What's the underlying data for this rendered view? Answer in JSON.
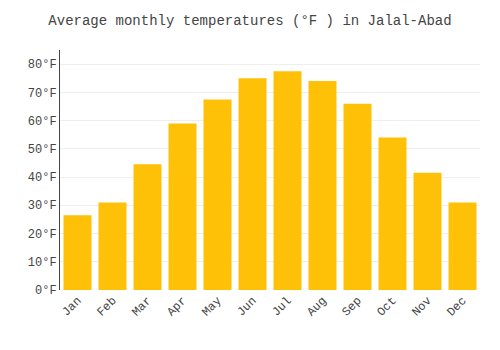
{
  "chart_data": {
    "type": "bar",
    "title": "Average monthly temperatures (°F ) in Jalal-Abad",
    "categories": [
      "Jan",
      "Feb",
      "Mar",
      "Apr",
      "May",
      "Jun",
      "Jul",
      "Aug",
      "Sep",
      "Oct",
      "Nov",
      "Dec"
    ],
    "values": [
      26.5,
      31.0,
      44.5,
      59.0,
      67.5,
      75.0,
      77.5,
      74.0,
      66.0,
      54.0,
      41.5,
      31.0
    ],
    "color": "#FFC107",
    "ylim": [
      0,
      85
    ],
    "yticks": [
      {
        "value": 0,
        "label": "0°F"
      },
      {
        "value": 10,
        "label": "10°F"
      },
      {
        "value": 20,
        "label": "20°F"
      },
      {
        "value": 30,
        "label": "30°F"
      },
      {
        "value": 40,
        "label": "40°F"
      },
      {
        "value": 50,
        "label": "50°F"
      },
      {
        "value": 60,
        "label": "60°F"
      },
      {
        "value": 70,
        "label": "70°F"
      },
      {
        "value": 80,
        "label": "80°F"
      }
    ],
    "grid": true
  }
}
